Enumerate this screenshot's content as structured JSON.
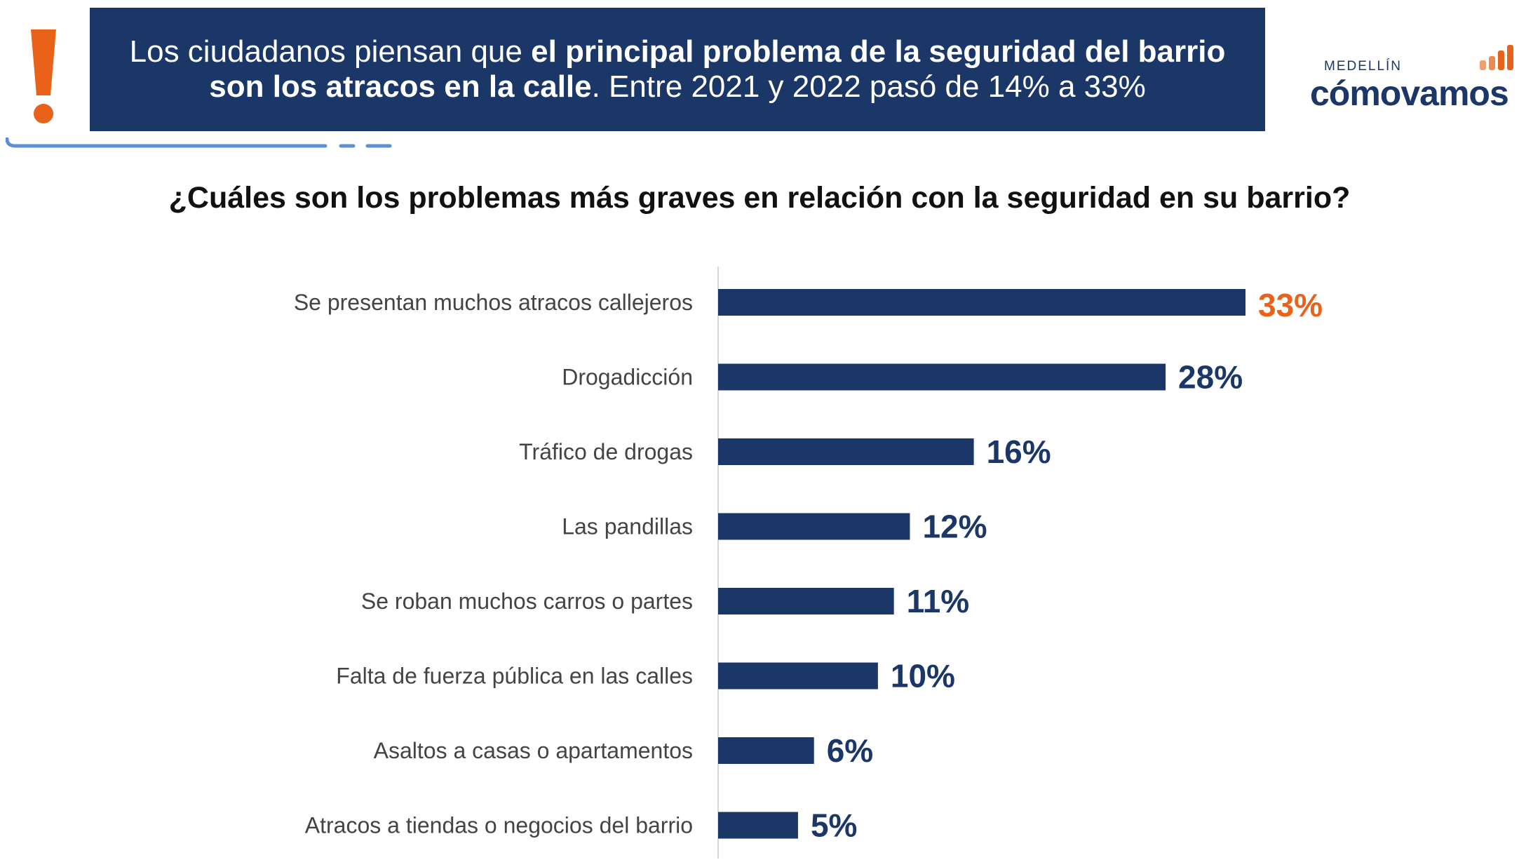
{
  "header": {
    "banner_normal_1": "Los ciudadanos piensan que ",
    "banner_bold": "el principal problema de la seguridad del barrio son los atracos en la calle",
    "banner_normal_2": ". Entre 2021 y 2022 pasó de 14% a 33%"
  },
  "logo": {
    "top_text": "MEDELLÍN",
    "main_text": "cómovamos"
  },
  "colors": {
    "bar": "#1b3768",
    "highlight": "#e8621a",
    "accent_line": "#5b8fd6"
  },
  "chart_data": {
    "type": "bar",
    "orientation": "horizontal",
    "title": "¿Cuáles son los problemas más graves en relación con la seguridad en su barrio?",
    "categories": [
      "Se presentan muchos atracos callejeros",
      "Drogadicción",
      "Tráfico de drogas",
      "Las pandillas",
      "Se roban muchos carros o partes",
      "Falta de fuerza pública en las calles",
      "Asaltos a casas o apartamentos",
      "Atracos a tiendas o negocios del barrio"
    ],
    "values": [
      33,
      28,
      16,
      12,
      11,
      10,
      6,
      5
    ],
    "value_labels": [
      "33%",
      "28%",
      "16%",
      "12%",
      "11%",
      "10%",
      "6%",
      "5%"
    ],
    "highlight_index": 0,
    "xlim": [
      0,
      33
    ],
    "grid": false
  }
}
